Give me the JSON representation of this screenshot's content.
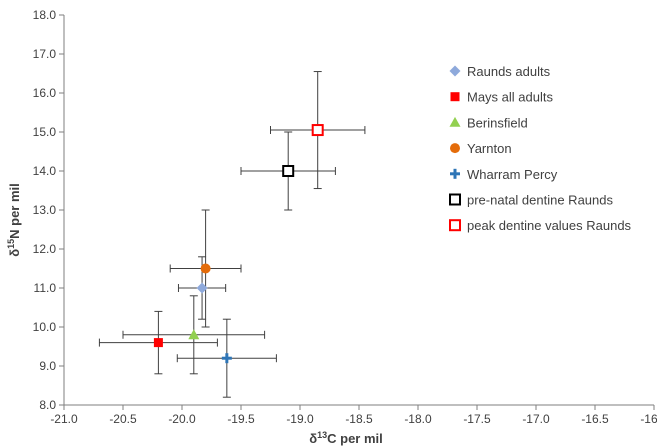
{
  "chart_data": {
    "type": "scatter",
    "title": "",
    "xlabel": {
      "main": "δ",
      "sup": "13",
      "rest": "C per mil"
    },
    "ylabel": {
      "main": "δ",
      "sup": "15",
      "rest": "N per mil"
    },
    "xlim": [
      -21.0,
      -16.0
    ],
    "ylim": [
      8.0,
      18.0
    ],
    "x_ticks": [
      "-21.0",
      "-20.5",
      "-20.0",
      "-19.5",
      "-19.0",
      "-18.5",
      "-18.0",
      "-17.5",
      "-17.0",
      "-16.5",
      "-16.0"
    ],
    "y_ticks": [
      "8.0",
      "9.0",
      "10.0",
      "11.0",
      "12.0",
      "13.0",
      "14.0",
      "15.0",
      "16.0",
      "17.0",
      "18.0"
    ],
    "grid": false,
    "legend_position": "right",
    "series": [
      {
        "name": "Raunds adults",
        "marker": "diamond",
        "color": "#8EA9DB",
        "x": -19.83,
        "y": 11.0,
        "x_err": 0.2,
        "y_err": 0.8
      },
      {
        "name": "Mays all adults",
        "marker": "square",
        "color": "#FF0000",
        "x": -20.2,
        "y": 9.6,
        "x_err": 0.5,
        "y_err": 0.8
      },
      {
        "name": "Berinsfield",
        "marker": "triangle",
        "color": "#92D050",
        "x": -19.9,
        "y": 9.8,
        "x_err": 0.6,
        "y_err": 1.0
      },
      {
        "name": "Yarnton",
        "marker": "circle",
        "color": "#E46C0A",
        "x": -19.8,
        "y": 11.5,
        "x_err": 0.3,
        "y_err": 1.5
      },
      {
        "name": "Wharram Percy",
        "marker": "plus",
        "color": "#2E75B6",
        "x": -19.62,
        "y": 9.2,
        "x_err": 0.42,
        "y_err": 1.0
      },
      {
        "name": "pre-natal dentine Raunds",
        "marker": "square-open",
        "color": "#000000",
        "x": -19.1,
        "y": 14.0,
        "x_err": 0.4,
        "y_err": 1.0
      },
      {
        "name": "peak dentine values Raunds",
        "marker": "square-open",
        "color": "#FF0000",
        "x": -18.85,
        "y": 15.05,
        "x_err": 0.4,
        "y_err": 1.5
      }
    ]
  }
}
